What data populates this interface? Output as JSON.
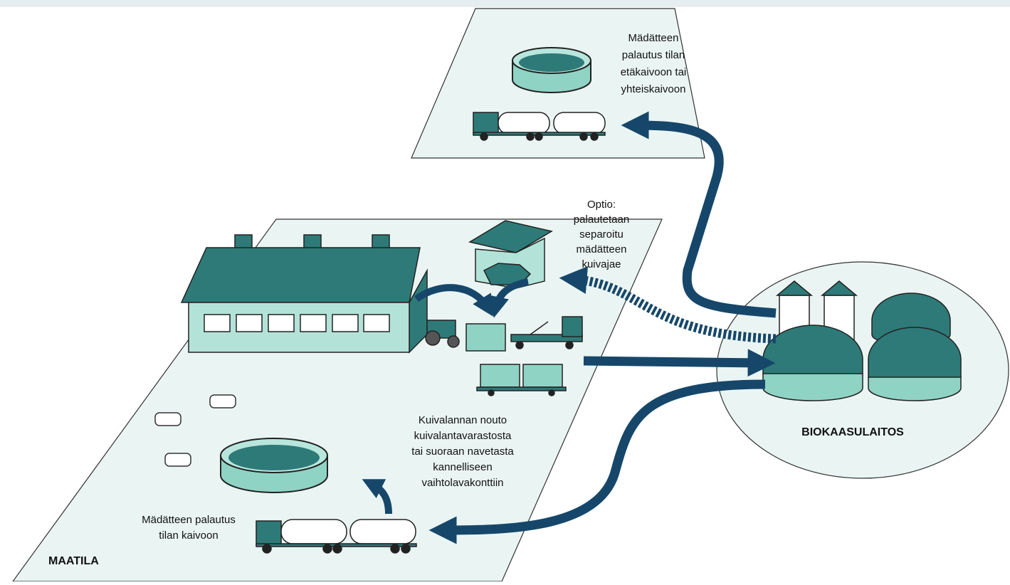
{
  "labels": {
    "remote_return": [
      "Mädätteen",
      "palautus tilan",
      "etäkaivoon tai",
      "yhteiskaivoon"
    ],
    "option": [
      "Optio:",
      "palautetaan",
      "separoitu",
      "mädätteen",
      "kuivajae"
    ],
    "pickup": [
      "Kuivalannan nouto",
      "kuivalantavarastosta",
      "tai suoraan navetasta",
      "kannelliseen",
      "vaihtolavakonttiin"
    ],
    "farm_return": [
      "Mädätteen palautus",
      "tilan kaivoon"
    ],
    "farm": "MAATILA",
    "plant": "BIOKAASULAITOS"
  }
}
